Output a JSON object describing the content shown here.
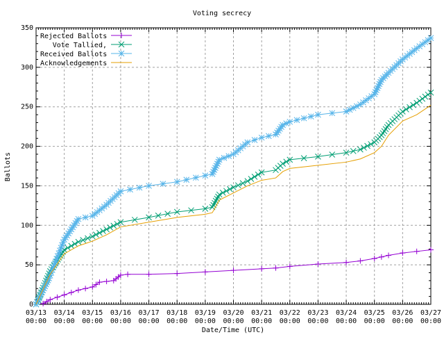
{
  "chart_data": {
    "type": "line",
    "title": "Voting secrecy",
    "xlabel": "Date/Time (UTC)",
    "ylabel": "Ballots",
    "ylim": [
      0,
      350
    ],
    "yticks": [
      "0",
      "50",
      "100",
      "150",
      "200",
      "250",
      "300",
      "350"
    ],
    "xlim": [
      "03/13 00:00",
      "03/27 00:00"
    ],
    "xticks": [
      "03/13",
      "03/14",
      "03/15",
      "03/16",
      "03/17",
      "03/18",
      "03/19",
      "03/20",
      "03/21",
      "03/22",
      "03/23",
      "03/24",
      "03/25",
      "03/26",
      "03/27"
    ],
    "xtick_time": "00:00",
    "grid": true,
    "legend_position": "top-left",
    "series": [
      {
        "name": "Rejected Ballots",
        "color": "#9400d3",
        "marker": "plus",
        "line": true,
        "x": [
          "03/13 06:00",
          "03/13 12:00",
          "03/14 00:00",
          "03/14 12:00",
          "03/15 00:00",
          "03/15 06:00",
          "03/15 12:00",
          "03/15 18:00",
          "03/16 00:00",
          "03/16 06:00",
          "03/17 00:00",
          "03/18 00:00",
          "03/19 00:00",
          "03/20 00:00",
          "03/21 00:00",
          "03/21 12:00",
          "03/22 00:00",
          "03/23 00:00",
          "03/24 00:00",
          "03/24 12:00",
          "03/25 00:00",
          "03/25 12:00",
          "03/26 00:00",
          "03/26 12:00",
          "03/27 00:00"
        ],
        "y": [
          1,
          6,
          12,
          18,
          22,
          28,
          29,
          30,
          37,
          38,
          38,
          39,
          41,
          43,
          45,
          46,
          48,
          51,
          53,
          55,
          58,
          62,
          65,
          67,
          69
        ]
      },
      {
        "name": "Vote Tallied,",
        "color": "#009e73",
        "marker": "cross",
        "line": true,
        "x": [
          "03/13 00:00",
          "03/13 12:00",
          "03/14 00:00",
          "03/14 12:00",
          "03/15 00:00",
          "03/15 12:00",
          "03/16 00:00",
          "03/17 00:00",
          "03/18 00:00",
          "03/19 00:00",
          "03/19 06:00",
          "03/19 12:00",
          "03/20 00:00",
          "03/20 12:00",
          "03/21 00:00",
          "03/21 12:00",
          "03/21 18:00",
          "03/22 00:00",
          "03/23 00:00",
          "03/24 00:00",
          "03/24 12:00",
          "03/25 00:00",
          "03/25 06:00",
          "03/25 12:00",
          "03/26 00:00",
          "03/26 12:00",
          "03/27 00:00"
        ],
        "y": [
          0,
          42,
          69,
          79,
          86,
          95,
          104,
          110,
          117,
          121,
          123,
          139,
          148,
          156,
          167,
          170,
          178,
          183,
          187,
          192,
          196,
          205,
          214,
          227,
          244,
          255,
          268
        ]
      },
      {
        "name": "Received Ballots",
        "color": "#56b4e9",
        "marker": "star",
        "line": true,
        "x": [
          "03/13 00:00",
          "03/13 11:00",
          "03/14 00:00",
          "03/14 12:00",
          "03/15 00:00",
          "03/15 12:00",
          "03/16 00:00",
          "03/17 00:00",
          "03/18 00:00",
          "03/19 00:00",
          "03/19 06:00",
          "03/19 12:00",
          "03/20 00:00",
          "03/20 12:00",
          "03/21 00:00",
          "03/21 12:00",
          "03/21 18:00",
          "03/22 00:00",
          "03/23 00:00",
          "03/24 00:00",
          "03/24 12:00",
          "03/25 00:00",
          "03/25 06:00",
          "03/25 12:00",
          "03/26 00:00",
          "03/26 12:00",
          "03/27 00:00"
        ],
        "y": [
          0,
          33,
          82,
          108,
          112,
          126,
          143,
          150,
          155,
          163,
          165,
          183,
          190,
          205,
          211,
          215,
          227,
          231,
          240,
          244,
          253,
          266,
          284,
          293,
          310,
          324,
          337
        ]
      },
      {
        "name": "Acknowledgements",
        "color": "#e69f00",
        "marker": "none",
        "line": true,
        "x": [
          "03/13 00:00",
          "03/13 12:00",
          "03/14 00:00",
          "03/14 12:00",
          "03/15 00:00",
          "03/15 12:00",
          "03/16 00:00",
          "03/17 00:00",
          "03/18 00:00",
          "03/19 00:00",
          "03/19 06:00",
          "03/19 12:00",
          "03/20 00:00",
          "03/20 12:00",
          "03/21 00:00",
          "03/21 12:00",
          "03/21 18:00",
          "03/22 00:00",
          "03/23 00:00",
          "03/24 00:00",
          "03/24 12:00",
          "03/25 00:00",
          "03/25 06:00",
          "03/25 12:00",
          "03/26 00:00",
          "03/26 12:00",
          "03/27 00:00"
        ],
        "y": [
          0,
          38,
          64,
          74,
          80,
          88,
          98,
          104,
          110,
          114,
          116,
          132,
          141,
          150,
          157,
          160,
          168,
          172,
          176,
          180,
          184,
          192,
          200,
          214,
          232,
          240,
          252
        ]
      }
    ]
  }
}
